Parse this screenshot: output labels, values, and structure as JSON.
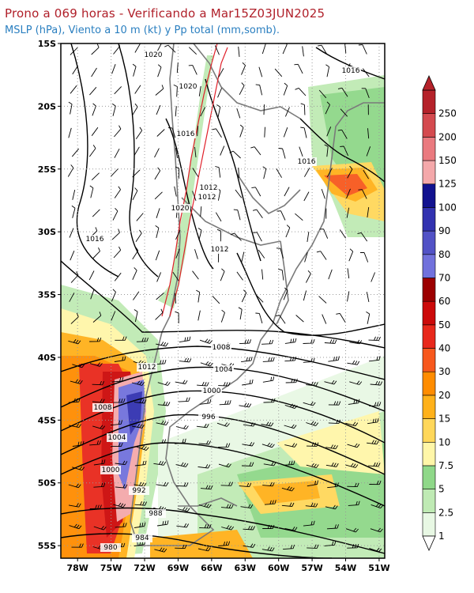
{
  "header": {
    "title": "Prono a 069 horas - Verificando a Mar15Z03JUN2025",
    "subtitle": "MSLP (hPa), Viento a 10 m (kt) y Pp total (mm,somb)."
  },
  "map": {
    "lat_labels": [
      "15S",
      "20S",
      "25S",
      "30S",
      "35S",
      "40S",
      "45S",
      "50S",
      "55S"
    ],
    "lon_labels": [
      "78W",
      "75W",
      "72W",
      "69W",
      "66W",
      "63W",
      "60W",
      "57W",
      "54W",
      "51W"
    ],
    "isobar_labels": [
      "1020",
      "1020",
      "1016",
      "1016",
      "1016",
      "1012",
      "1020",
      "1012",
      "1016",
      "1012",
      "1008",
      "1004",
      "1000",
      "996",
      "1012",
      "1008",
      "1004",
      "1000",
      "992",
      "988",
      "984",
      "980"
    ]
  },
  "colorbar": {
    "labels": [
      "1",
      "2.5",
      "5",
      "7.5",
      "10",
      "15",
      "20",
      "30",
      "40",
      "50",
      "60",
      "70",
      "80",
      "90",
      "100",
      "125",
      "150",
      "200",
      "250"
    ],
    "colors": [
      "#e8f8e4",
      "#bfeab4",
      "#8fd889",
      "#fff6a8",
      "#ffd75a",
      "#ffb11a",
      "#ff8c00",
      "#f7581d",
      "#e8281b",
      "#cc0a0a",
      "#9c0000",
      "#7171dc",
      "#5252c6",
      "#3232b0",
      "#12128f",
      "#f4a8aa",
      "#ea7a7f",
      "#d44a4f",
      "#b5222a"
    ]
  }
}
